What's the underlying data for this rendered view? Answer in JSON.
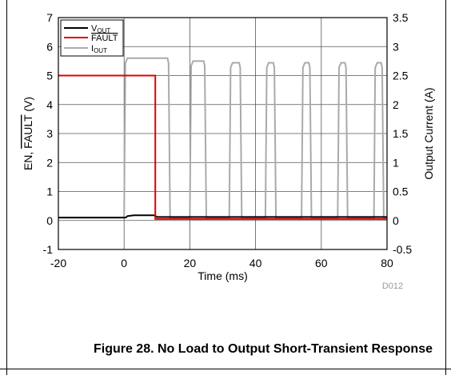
{
  "caption": "Figure 28. No Load to Output Short-Transient Response",
  "chart_data": {
    "type": "line",
    "figure_id": "D012",
    "xlabel": "Time (ms)",
    "ylabel_left": "EN, FAULT (V)",
    "ylabel_right": "Output Current (A)",
    "xlim": [
      -20,
      80
    ],
    "ylim_left": [
      -1,
      7
    ],
    "ylim_right": [
      -0.5,
      3.5
    ],
    "x_ticks": [
      "-20",
      "0",
      "20",
      "40",
      "60",
      "80"
    ],
    "y_left_ticks": [
      "-1",
      "0",
      "1",
      "2",
      "3",
      "4",
      "5",
      "6",
      "7"
    ],
    "y_right_ticks": [
      "-0.5",
      "0",
      "0.5",
      "1",
      "1.5",
      "2",
      "2.5",
      "3",
      "3.5"
    ],
    "grid": true,
    "legend_position": "top-left",
    "colors": {
      "vout": "#000000",
      "fault": "#e00000",
      "iout": "#aaaaaa"
    },
    "series": [
      {
        "name": "VOUT",
        "legend_main": "V",
        "legend_sub": "OUT",
        "axis": "left",
        "x": [
          -20,
          0.5,
          1.0,
          3.0,
          9.0,
          9.5,
          10.0,
          80
        ],
        "y": [
          0.1,
          0.1,
          0.15,
          0.18,
          0.18,
          0.16,
          0.12,
          0.12
        ]
      },
      {
        "name": "FAULT",
        "legend_main": "FAULT",
        "legend_sub": "",
        "axis": "left",
        "overline": true,
        "x": [
          -20,
          9.5,
          9.5,
          80
        ],
        "y": [
          5.0,
          5.0,
          0.05,
          0.05
        ]
      },
      {
        "name": "IOUT",
        "legend_main": "I",
        "legend_sub": "OUT",
        "axis": "right",
        "pulses": [
          {
            "start": 0.0,
            "end": 14.0,
            "peak": 2.8
          },
          {
            "start": 20.0,
            "end": 25.0,
            "peak": 2.75
          },
          {
            "start": 32.0,
            "end": 35.8,
            "peak": 2.72
          },
          {
            "start": 43.0,
            "end": 46.2,
            "peak": 2.72
          },
          {
            "start": 54.0,
            "end": 57.0,
            "peak": 2.72
          },
          {
            "start": 65.0,
            "end": 68.0,
            "peak": 2.72
          },
          {
            "start": 76.0,
            "end": 79.0,
            "peak": 2.72
          }
        ],
        "baseline": 0.05,
        "ramp_ms": 1.0,
        "fall_ms": 0.8,
        "slope_start_frac": 0.97
      }
    ]
  }
}
